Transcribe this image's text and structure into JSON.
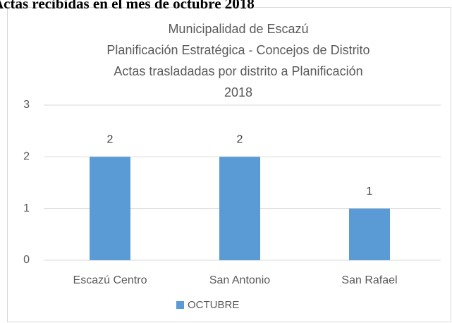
{
  "heading": "Actas recibidas en el mes de octubre 2018",
  "chart_data": {
    "type": "bar",
    "title": [
      "Municipalidad de Escazú",
      "Planificación Estratégica - Concejos de Distrito",
      "Actas trasladadas por distrito a Planificación",
      "2018"
    ],
    "categories": [
      "Escazú Centro",
      "San Antonio",
      "San Rafael"
    ],
    "series": [
      {
        "name": "OCTUBRE",
        "color": "#5b9bd5",
        "values": [
          2,
          2,
          1
        ]
      }
    ],
    "ylim": [
      0,
      3
    ],
    "yticks": [
      0,
      1,
      2,
      3
    ],
    "grid": true,
    "legend": "bottom"
  }
}
